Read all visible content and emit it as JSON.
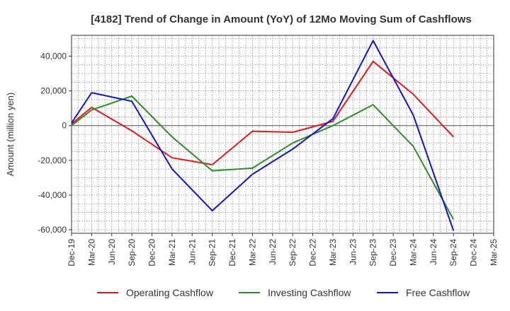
{
  "chart_data": {
    "type": "line",
    "title": "[4182]  Trend of Change in Amount (YoY) of 12Mo Moving Sum of Cashflows",
    "xlabel": "",
    "ylabel": "Amount (million yen)",
    "categories": [
      "Dec-19",
      "Mar-20",
      "Jun-20",
      "Sep-20",
      "Dec-20",
      "Mar-21",
      "Jun-21",
      "Sep-21",
      "Dec-21",
      "Mar-22",
      "Jun-22",
      "Sep-22",
      "Dec-22",
      "Mar-23",
      "Jun-23",
      "Sep-23",
      "Dec-23",
      "Mar-24",
      "Jun-24",
      "Sep-24",
      "Dec-24",
      "Mar-25"
    ],
    "ylim": [
      -62000,
      52000
    ],
    "yticks": [
      -60000,
      -40000,
      -20000,
      0,
      20000,
      40000
    ],
    "ytick_labels": [
      "-60,000",
      "-40,000",
      "-20,000",
      "0",
      "20,000",
      "40,000"
    ],
    "grid": true,
    "legend_position": "bottom",
    "series": [
      {
        "name": "Operating Cashflow",
        "color": "#e31a1c",
        "values": [
          1000,
          10500,
          null,
          -3000,
          null,
          -18500,
          null,
          -22500,
          null,
          -3200,
          null,
          -3800,
          null,
          2500,
          null,
          37000,
          null,
          18000,
          null,
          -6500,
          null,
          null
        ]
      },
      {
        "name": "Investing Cashflow",
        "color": "#2e8b2e",
        "values": [
          0,
          9000,
          null,
          17000,
          null,
          -6500,
          null,
          -26000,
          null,
          -24500,
          null,
          -10000,
          null,
          0,
          null,
          12000,
          null,
          -12000,
          null,
          -54000,
          null,
          null
        ]
      },
      {
        "name": "Free Cashflow",
        "color": "#1414c8",
        "values": [
          1500,
          19000,
          null,
          14000,
          null,
          -25000,
          null,
          -49000,
          null,
          -28000,
          null,
          -13500,
          null,
          4000,
          null,
          49000,
          null,
          6000,
          null,
          -60500,
          null,
          null
        ]
      }
    ]
  }
}
